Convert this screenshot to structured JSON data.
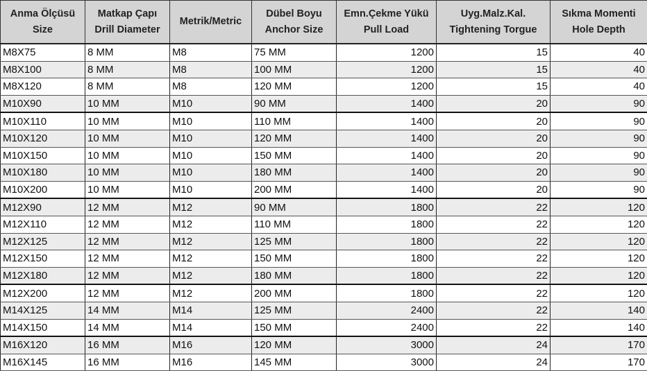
{
  "headers": [
    {
      "line1": "Anma Ölçüsü",
      "line2": "Size"
    },
    {
      "line1": "Matkap Çapı",
      "line2": "Drill Diameter"
    },
    {
      "line1": "Metrik/Metric",
      "line2": ""
    },
    {
      "line1": "Dübel Boyu",
      "line2": "Anchor Size"
    },
    {
      "line1": "Emn.Çekme Yükü",
      "line2": "Pull Load"
    },
    {
      "line1": "Uyg.Malz.Kal.",
      "line2": "Tightening Torgue"
    },
    {
      "line1": "Sıkma Momenti",
      "line2": "Hole Depth"
    }
  ],
  "rows": [
    [
      "M8X75",
      "8 MM",
      "M8",
      "75 MM",
      "1200",
      "15",
      "40"
    ],
    [
      "M8X100",
      "8 MM",
      "M8",
      "100 MM",
      "1200",
      "15",
      "40"
    ],
    [
      "M8X120",
      "8 MM",
      "M8",
      "120 MM",
      "1200",
      "15",
      "40"
    ],
    [
      "M10X90",
      "10 MM",
      "M10",
      "90 MM",
      "1400",
      "20",
      "90"
    ],
    [
      "M10X110",
      "10 MM",
      "M10",
      "110 MM",
      "1400",
      "20",
      "90"
    ],
    [
      "M10X120",
      "10 MM",
      "M10",
      "120 MM",
      "1400",
      "20",
      "90"
    ],
    [
      "M10X150",
      "10 MM",
      "M10",
      "150 MM",
      "1400",
      "20",
      "90"
    ],
    [
      "M10X180",
      "10 MM",
      "M10",
      "180 MM",
      "1400",
      "20",
      "90"
    ],
    [
      "M10X200",
      "10 MM",
      "M10",
      "200 MM",
      "1400",
      "20",
      "90"
    ],
    [
      "M12X90",
      "12 MM",
      "M12",
      "90 MM",
      "1800",
      "22",
      "120"
    ],
    [
      "M12X110",
      "12 MM",
      "M12",
      "110 MM",
      "1800",
      "22",
      "120"
    ],
    [
      "M12X125",
      "12 MM",
      "M12",
      "125 MM",
      "1800",
      "22",
      "120"
    ],
    [
      "M12X150",
      "12 MM",
      "M12",
      "150 MM",
      "1800",
      "22",
      "120"
    ],
    [
      "M12X180",
      "12 MM",
      "M12",
      "180 MM",
      "1800",
      "22",
      "120"
    ],
    [
      "M12X200",
      "12 MM",
      "M12",
      "200 MM",
      "1800",
      "22",
      "120"
    ],
    [
      "M14X125",
      "14 MM",
      "M14",
      "125 MM",
      "2400",
      "22",
      "140"
    ],
    [
      "M14X150",
      "14 MM",
      "M14",
      "150 MM",
      "2400",
      "22",
      "140"
    ],
    [
      "M16X120",
      "16 MM",
      "M16",
      "120 MM",
      "3000",
      "24",
      "170"
    ],
    [
      "M16X145",
      "16 MM",
      "M16",
      "145 MM",
      "3000",
      "24",
      "170"
    ]
  ],
  "colors": {
    "header_bg": "#d4d4d4",
    "alt_row_bg": "#ececec"
  }
}
